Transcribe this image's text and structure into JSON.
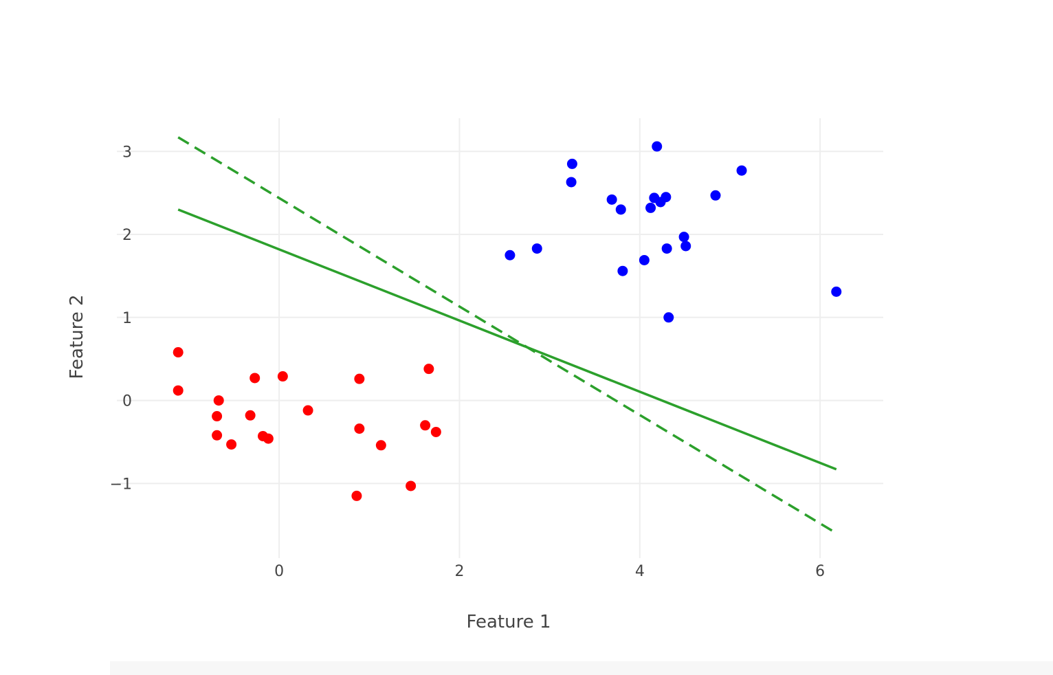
{
  "chart_data": {
    "type": "scatter",
    "title": "",
    "xlabel": "Feature 1",
    "ylabel": "Feature 2",
    "xlim": [
      -1.8,
      6.7
    ],
    "ylim": [
      -1.9,
      3.4
    ],
    "x_ticks": [
      0,
      2,
      4,
      6
    ],
    "x_tick_labels": [
      "0",
      "2",
      "4",
      "6"
    ],
    "y_ticks": [
      -1,
      0,
      1,
      2,
      3
    ],
    "y_tick_labels": [
      "−1",
      "0",
      "1",
      "2",
      "3"
    ],
    "grid": true,
    "legend": "none",
    "series": [
      {
        "kind": "markers",
        "color": "#ff0000",
        "points": [
          [
            -1.12,
            0.58
          ],
          [
            -1.12,
            0.12
          ],
          [
            -0.67,
            0.0
          ],
          [
            -0.69,
            -0.19
          ],
          [
            -0.69,
            -0.42
          ],
          [
            -0.53,
            -0.53
          ],
          [
            -0.32,
            -0.18
          ],
          [
            -0.27,
            0.27
          ],
          [
            -0.18,
            -0.43
          ],
          [
            -0.12,
            -0.46
          ],
          [
            0.04,
            0.29
          ],
          [
            0.32,
            -0.12
          ],
          [
            0.89,
            0.26
          ],
          [
            0.89,
            -0.34
          ],
          [
            0.86,
            -1.15
          ],
          [
            1.13,
            -0.54
          ],
          [
            1.46,
            -1.03
          ],
          [
            1.62,
            -0.3
          ],
          [
            1.66,
            0.38
          ],
          [
            1.74,
            -0.38
          ]
        ]
      },
      {
        "kind": "markers",
        "color": "#0000ff",
        "points": [
          [
            2.56,
            1.75
          ],
          [
            2.86,
            1.83
          ],
          [
            3.25,
            2.85
          ],
          [
            3.24,
            2.63
          ],
          [
            3.69,
            2.42
          ],
          [
            3.79,
            2.3
          ],
          [
            3.81,
            1.56
          ],
          [
            4.05,
            1.69
          ],
          [
            4.12,
            2.32
          ],
          [
            4.16,
            2.44
          ],
          [
            4.19,
            3.06
          ],
          [
            4.23,
            2.39
          ],
          [
            4.29,
            2.45
          ],
          [
            4.3,
            1.83
          ],
          [
            4.32,
            1.0
          ],
          [
            4.49,
            1.97
          ],
          [
            4.51,
            1.86
          ],
          [
            4.84,
            2.47
          ],
          [
            5.13,
            2.77
          ],
          [
            6.18,
            1.31
          ]
        ]
      },
      {
        "kind": "line",
        "style": "solid",
        "color": "#2ca02c",
        "points": [
          [
            -1.12,
            2.3
          ],
          [
            6.18,
            -0.83
          ]
        ]
      },
      {
        "kind": "line",
        "style": "dashed",
        "color": "#2ca02c",
        "points": [
          [
            -1.12,
            3.17
          ],
          [
            6.18,
            -1.6
          ]
        ]
      }
    ]
  }
}
